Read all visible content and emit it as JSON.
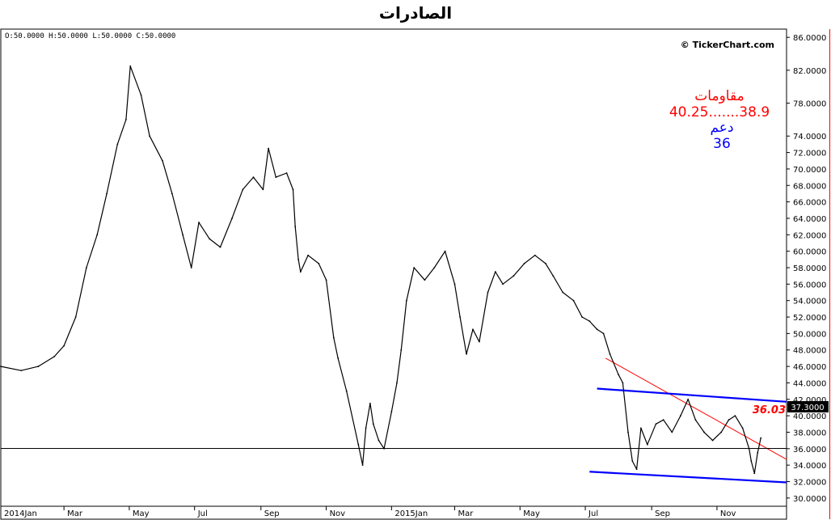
{
  "chart_data": {
    "type": "line",
    "title": "الصادرات",
    "ohlc_readout": "O:50.0000   H:50.0000   L:50.0000   C:50.0000",
    "watermark": "© TickerChart.com",
    "y_axis_position": "right",
    "ylim": [
      29.0,
      87.0
    ],
    "grid": false,
    "y_ticks": [
      "86.0000",
      "82.0000",
      "78.0000",
      "74.0000",
      "72.0000",
      "70.0000",
      "68.0000",
      "66.0000",
      "64.0000",
      "62.0000",
      "60.0000",
      "58.0000",
      "56.0000",
      "54.0000",
      "52.0000",
      "50.0000",
      "48.0000",
      "46.0000",
      "44.0000",
      "42.0000",
      "40.0000",
      "38.0000",
      "36.0000",
      "34.0000",
      "32.0000",
      "30.0000"
    ],
    "x_ticks": [
      "2014Jan",
      "Mar",
      "May",
      "Jul",
      "Sep",
      "Nov",
      "2015Jan",
      "Mar",
      "May",
      "Jul",
      "Sep",
      "Nov"
    ],
    "last_price_label": "37.3000",
    "series": [
      {
        "color": "#000000",
        "x": [
          "2014-01-01",
          "2014-01-20",
          "2014-02-05",
          "2014-02-20",
          "2014-03-01",
          "2014-03-12",
          "2014-03-22",
          "2014-04-01",
          "2014-04-10",
          "2014-04-20",
          "2014-04-28",
          "2014-05-02",
          "2014-05-12",
          "2014-05-20",
          "2014-06-01",
          "2014-06-10",
          "2014-06-20",
          "2014-06-28",
          "2014-07-05",
          "2014-07-15",
          "2014-07-25",
          "2014-08-05",
          "2014-08-15",
          "2014-08-25",
          "2014-09-03",
          "2014-09-08",
          "2014-09-15",
          "2014-09-25",
          "2014-10-01",
          "2014-10-03",
          "2014-10-06",
          "2014-10-08",
          "2014-10-15",
          "2014-10-25",
          "2014-11-01",
          "2014-11-08",
          "2014-11-12",
          "2014-11-20",
          "2014-12-01",
          "2014-12-05",
          "2014-12-08",
          "2014-12-12",
          "2014-12-15",
          "2014-12-20",
          "2014-12-25",
          "2015-01-01",
          "2015-01-06",
          "2015-01-10",
          "2015-01-15",
          "2015-01-22",
          "2015-02-01",
          "2015-02-10",
          "2015-02-20",
          "2015-03-01",
          "2015-03-06",
          "2015-03-12",
          "2015-03-18",
          "2015-03-24",
          "2015-04-01",
          "2015-04-08",
          "2015-04-15",
          "2015-04-25",
          "2015-05-05",
          "2015-05-15",
          "2015-05-25",
          "2015-06-01",
          "2015-06-10",
          "2015-06-20",
          "2015-06-28",
          "2015-07-05",
          "2015-07-12",
          "2015-07-18",
          "2015-07-24",
          "2015-08-01",
          "2015-08-05",
          "2015-08-10",
          "2015-08-14",
          "2015-08-18",
          "2015-08-22",
          "2015-08-28",
          "2015-09-05",
          "2015-09-12",
          "2015-09-20",
          "2015-09-28",
          "2015-10-05",
          "2015-10-12",
          "2015-10-20",
          "2015-10-28",
          "2015-11-05",
          "2015-11-12",
          "2015-11-18",
          "2015-11-25",
          "2015-12-01",
          "2015-12-03",
          "2015-12-06",
          "2015-12-09",
          "2015-12-12"
        ],
        "values": [
          46.0,
          45.5,
          46.0,
          47.2,
          48.5,
          52.0,
          58.0,
          62.0,
          67.0,
          73.0,
          76.0,
          82.5,
          79.0,
          74.0,
          71.0,
          67.0,
          62.0,
          58.0,
          63.5,
          61.5,
          60.5,
          64.0,
          67.5,
          69.0,
          67.5,
          72.5,
          69.0,
          69.5,
          67.5,
          63.0,
          59.0,
          57.5,
          59.5,
          58.5,
          56.5,
          49.5,
          47.0,
          43.0,
          36.5,
          34.0,
          38.5,
          41.5,
          39.0,
          37.0,
          36.0,
          40.5,
          44.0,
          48.0,
          54.0,
          58.0,
          56.5,
          58.0,
          60.0,
          56.0,
          52.0,
          47.5,
          50.5,
          49.0,
          55.0,
          57.5,
          56.0,
          57.0,
          58.5,
          59.5,
          58.5,
          57.0,
          55.0,
          54.0,
          52.0,
          51.5,
          50.5,
          50.0,
          47.5,
          45.0,
          44.0,
          38.0,
          34.5,
          33.5,
          38.5,
          36.5,
          39.0,
          39.5,
          38.0,
          40.0,
          42.0,
          39.5,
          38.0,
          37.0,
          38.0,
          39.5,
          40.0,
          38.5,
          36.0,
          34.5,
          33.0,
          35.5,
          37.3
        ]
      }
    ],
    "trendlines": [
      {
        "color": "#ff0000",
        "from": [
          "2015-07-20",
          47.0
        ],
        "to": [
          "2016-01-05",
          34.7
        ]
      },
      {
        "color": "#0000ff",
        "from": [
          "2015-07-12",
          43.3
        ],
        "to": [
          "2016-01-05",
          41.7
        ]
      },
      {
        "color": "#0000ff",
        "from": [
          "2015-07-05",
          33.2
        ],
        "to": [
          "2016-01-05",
          31.9
        ]
      },
      {
        "color": "#000000",
        "from": [
          "2014-01-01",
          36.03
        ],
        "to": [
          "2016-01-05",
          36.03
        ]
      }
    ],
    "annotations": {
      "resistance_label": "مقاومات",
      "resistance_values": "40.25.......38.9",
      "support_label": "دعم",
      "support_value": "36",
      "level_label": "36.03",
      "resistance_color": "#ff0000",
      "support_color": "#0000ff"
    }
  }
}
